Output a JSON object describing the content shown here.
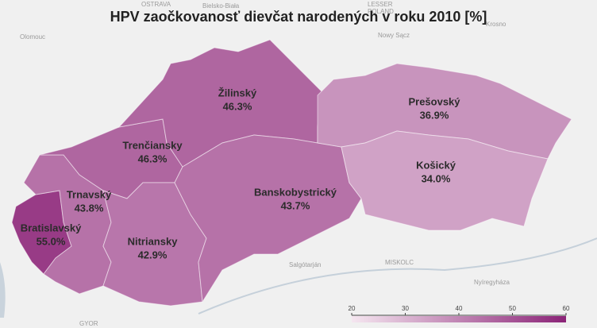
{
  "chart_data": {
    "type": "choropleth",
    "title": "HPV zaočkovanosť dievčat narodených v roku 2010 [%]",
    "categories": [
      "Bratislavský",
      "Trnavský",
      "Trenčiansky",
      "Nitriansky",
      "Žilinský",
      "Banskobystrický",
      "Prešovský",
      "Košický"
    ],
    "values": [
      55.0,
      43.8,
      46.3,
      42.9,
      46.3,
      43.7,
      36.9,
      34.0
    ],
    "value_labels": [
      "55.0%",
      "43.8%",
      "46.3%",
      "42.9%",
      "46.3%",
      "43.7%",
      "36.9%",
      "34.0%"
    ],
    "colorscale": [
      "#f5e6f0",
      "#8b2377"
    ],
    "xlim": [
      20,
      60
    ],
    "xticks": [
      20,
      30,
      40,
      50,
      60
    ],
    "places": [
      "OSTRAVA",
      "Olomouc",
      "Bielsko-Biała",
      "LESSER",
      "POLAND",
      "Nowy Sącz",
      "Krosno",
      "Salgótarján",
      "MISKOLC",
      "Nyíregyháza",
      "GYOR"
    ]
  }
}
